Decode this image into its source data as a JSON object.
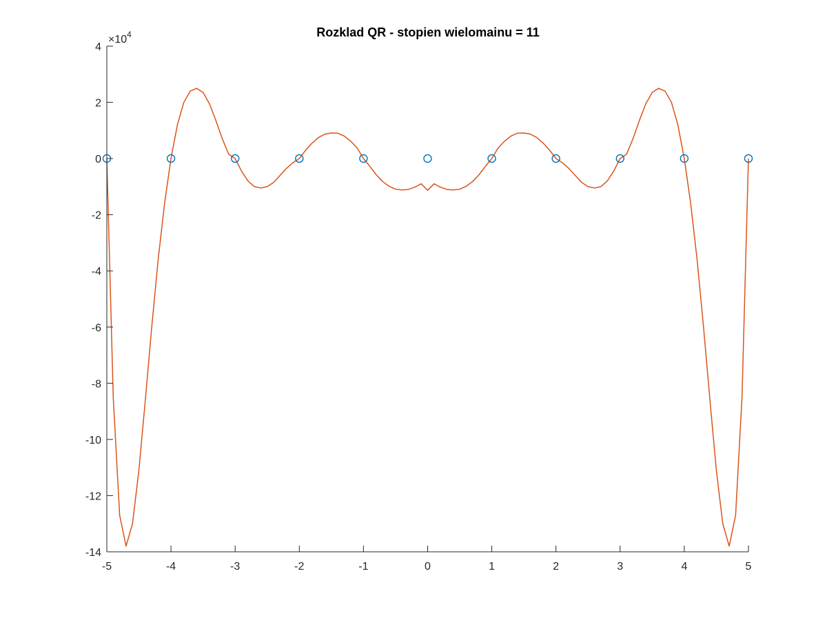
{
  "chart_data": {
    "type": "line",
    "title": "Rozklad QR - stopien wielomainu = 11",
    "xlabel": "",
    "ylabel": "",
    "xlim": [
      -5,
      5
    ],
    "ylim": [
      -140000,
      40000
    ],
    "x_ticks": [
      -5,
      -4,
      -3,
      -2,
      -1,
      0,
      1,
      2,
      3,
      4,
      5
    ],
    "x_tick_labels": [
      "-5",
      "-4",
      "-3",
      "-2",
      "-1",
      "0",
      "1",
      "2",
      "3",
      "4",
      "5"
    ],
    "y_ticks": [
      -140000,
      -120000,
      -100000,
      -80000,
      -60000,
      -40000,
      -20000,
      0,
      20000,
      40000
    ],
    "y_tick_labels": [
      "-14",
      "-12",
      "-10",
      "-8",
      "-6",
      "-4",
      "-2",
      "0",
      "2",
      "4"
    ],
    "y_exponent_base": "×10",
    "y_exponent_power": "4",
    "grid": false,
    "colors": {
      "markers": "#0072BD",
      "curve": "#D95319",
      "axes": "#262626"
    },
    "series": [
      {
        "kind": "markers",
        "x": [
          -5,
          -4,
          -3,
          -2,
          -1,
          0,
          1,
          2,
          3,
          4,
          5
        ],
        "y": [
          0.0385,
          0.0588,
          0.1,
          0.2,
          0.5,
          1,
          0.5,
          0.2,
          0.1,
          0.0588,
          0.0385
        ]
      },
      {
        "kind": "line",
        "x": [
          -5,
          -4.9,
          -4.8,
          -4.7,
          -4.6,
          -4.5,
          -4.4,
          -4.3,
          -4.2,
          -4.1,
          -4,
          -3.9,
          -3.8,
          -3.7,
          -3.6,
          -3.5,
          -3.4,
          -3.3,
          -3.2,
          -3.1,
          -3,
          -2.9,
          -2.8,
          -2.7,
          -2.6,
          -2.5,
          -2.4,
          -2.3,
          -2.2,
          -2.1,
          -2,
          -1.9,
          -1.8,
          -1.7,
          -1.6,
          -1.5,
          -1.4,
          -1.3,
          -1.2,
          -1.1,
          -1,
          -0.9,
          -0.8,
          -0.7,
          -0.6,
          -0.5,
          -0.4,
          -0.3,
          -0.2,
          -0.1,
          0,
          0.1,
          0.2,
          0.3,
          0.4,
          0.5,
          0.6,
          0.7,
          0.8,
          0.9,
          1,
          1.1,
          1.2,
          1.3,
          1.4,
          1.5,
          1.6,
          1.7,
          1.8,
          1.9,
          2,
          2.1,
          2.2,
          2.3,
          2.4,
          2.5,
          2.6,
          2.7,
          2.8,
          2.9,
          3,
          3.1,
          3.2,
          3.3,
          3.4,
          3.5,
          3.6,
          3.7,
          3.8,
          3.9,
          4,
          4.1,
          4.2,
          4.3,
          4.4,
          4.5,
          4.6,
          4.7,
          4.8,
          4.9,
          5
        ],
        "y": [
          0,
          -85000,
          -127000,
          -138000,
          -130000,
          -111000,
          -86000,
          -60000,
          -36000,
          -16000,
          0,
          12000,
          20000,
          24000,
          25000,
          23500,
          19500,
          13500,
          7000,
          1500,
          0,
          -4500,
          -8000,
          -10000,
          -10500,
          -10000,
          -8500,
          -6000,
          -3500,
          -1500,
          0,
          3000,
          5500,
          7500,
          8700,
          9100,
          9000,
          8000,
          6200,
          3800,
          0,
          -2800,
          -5800,
          -8200,
          -9900,
          -10900,
          -11200,
          -11000,
          -10200,
          -9000,
          -11300,
          -9000,
          -10200,
          -11000,
          -11200,
          -10900,
          -9900,
          -8200,
          -5800,
          -2800,
          0,
          3800,
          6200,
          8000,
          9000,
          9100,
          8700,
          7500,
          5500,
          3000,
          0,
          -1500,
          -3500,
          -6000,
          -8500,
          -10000,
          -10500,
          -10000,
          -8000,
          -4500,
          0,
          1500,
          7000,
          13500,
          19500,
          23500,
          25000,
          24000,
          20000,
          12000,
          0,
          -16000,
          -36000,
          -60000,
          -86000,
          -111000,
          -130000,
          -138000,
          -127000,
          -85000,
          0
        ]
      }
    ]
  }
}
